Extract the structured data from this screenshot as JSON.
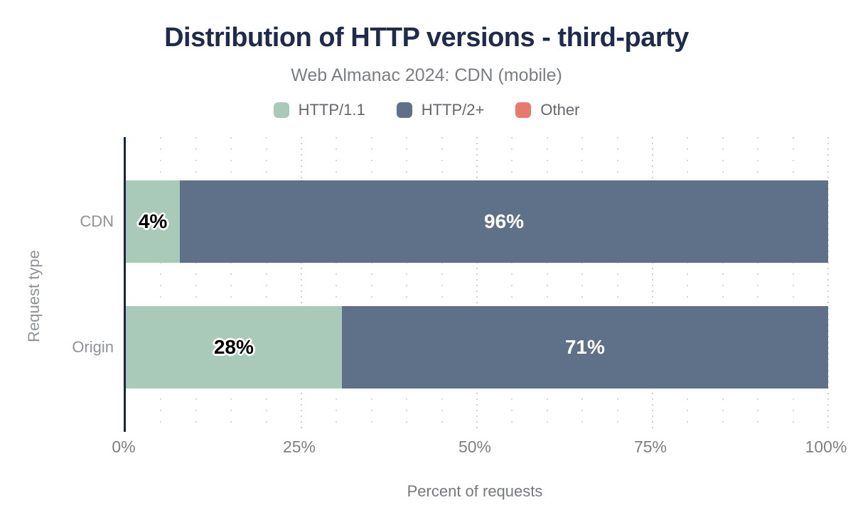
{
  "header": {
    "title": "Distribution of HTTP versions - third-party",
    "subtitle": "Web Almanac 2024: CDN (mobile)"
  },
  "legend": [
    {
      "label": "HTTP/1.1",
      "color": "#a9cab9"
    },
    {
      "label": "HTTP/2+",
      "color": "#5f7189"
    },
    {
      "label": "Other",
      "color": "#e8796c"
    }
  ],
  "chart_data": {
    "type": "bar",
    "orientation": "horizontal",
    "stacked": true,
    "title": "Distribution of HTTP versions - third-party",
    "subtitle": "Web Almanac 2024: CDN (mobile)",
    "categories": [
      "CDN",
      "Origin"
    ],
    "series": [
      {
        "name": "HTTP/1.1",
        "color": "#a9cab9",
        "label_color": "#000000",
        "halo": true,
        "values": [
          4,
          28
        ]
      },
      {
        "name": "HTTP/2+",
        "color": "#5f7189",
        "label_color": "#ffffff",
        "halo": false,
        "values": [
          96,
          71
        ]
      },
      {
        "name": "Other",
        "color": "#e8796c",
        "label_color": "#ffffff",
        "halo": false,
        "values": [
          0,
          0
        ]
      }
    ],
    "value_suffix": "%",
    "xlabel": "Percent of requests",
    "ylabel": "Request type",
    "x_ticks": [
      "0%",
      "25%",
      "50%",
      "75%",
      "100%"
    ],
    "xlim": [
      0,
      100
    ],
    "grid": "dotted vertical lines every 5%, denser dots at 25% multiples",
    "legend_position": "top-center",
    "axis_line_color": "#1b2542",
    "title_color": "#1e2b4d"
  }
}
